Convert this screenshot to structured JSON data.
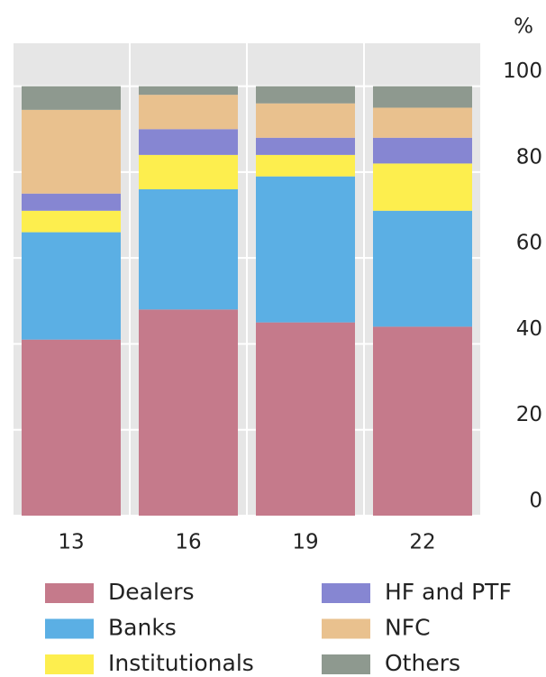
{
  "chart_data": {
    "type": "stacked_bar",
    "y_axis_label": "%",
    "categories": [
      "13",
      "16",
      "19",
      "22"
    ],
    "series": [
      {
        "name": "Dealers",
        "color": "#c57a8b",
        "values": [
          41,
          48,
          45,
          44
        ]
      },
      {
        "name": "Banks",
        "color": "#5bafe4",
        "values": [
          25,
          28,
          34,
          27
        ]
      },
      {
        "name": "Institutionals",
        "color": "#fdee4e",
        "values": [
          5,
          8,
          5,
          11
        ]
      },
      {
        "name": "HF and PTF",
        "color": "#8686d2",
        "values": [
          4,
          6,
          4,
          6
        ]
      },
      {
        "name": "NFC",
        "color": "#e9c18e",
        "values": [
          19.5,
          8,
          8,
          7
        ]
      },
      {
        "name": "Others",
        "color": "#8e998f",
        "values": [
          5.5,
          2,
          4,
          5
        ]
      }
    ],
    "ylim": [
      0,
      110
    ],
    "yticks": [
      0,
      20,
      40,
      60,
      80,
      100
    ],
    "grid": true
  }
}
